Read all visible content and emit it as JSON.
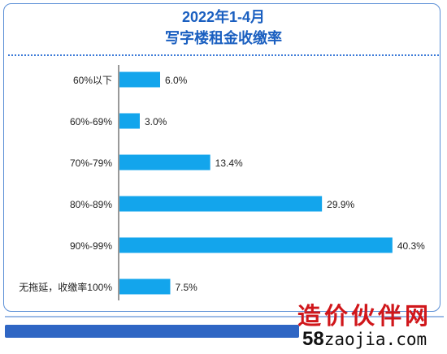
{
  "chart_data": {
    "type": "bar",
    "orientation": "horizontal",
    "title": "2022年1-4月",
    "subtitle": "写字楼租金收缴率",
    "categories": [
      "60%以下",
      "60%-69%",
      "70%-79%",
      "80%-89%",
      "90%-99%",
      "无拖延，收缴率100%"
    ],
    "values": [
      6.0,
      3.0,
      13.4,
      29.9,
      40.3,
      7.5
    ],
    "value_labels": [
      "6.0%",
      "3.0%",
      "13.4%",
      "29.9%",
      "40.3%",
      "7.5%"
    ],
    "xlim": [
      0,
      45
    ],
    "grid": false,
    "legend": "none",
    "bar_color": "#13a5ec",
    "title_color": "#1a5fc0"
  },
  "watermark": {
    "name": "造价伙伴网",
    "url_prefix": "58",
    "url_rest": "zaojia.com"
  },
  "colors": {
    "border": "#5b8fd6",
    "footer_bar": "#2f66c4",
    "watermark_red": "#d0161a"
  }
}
